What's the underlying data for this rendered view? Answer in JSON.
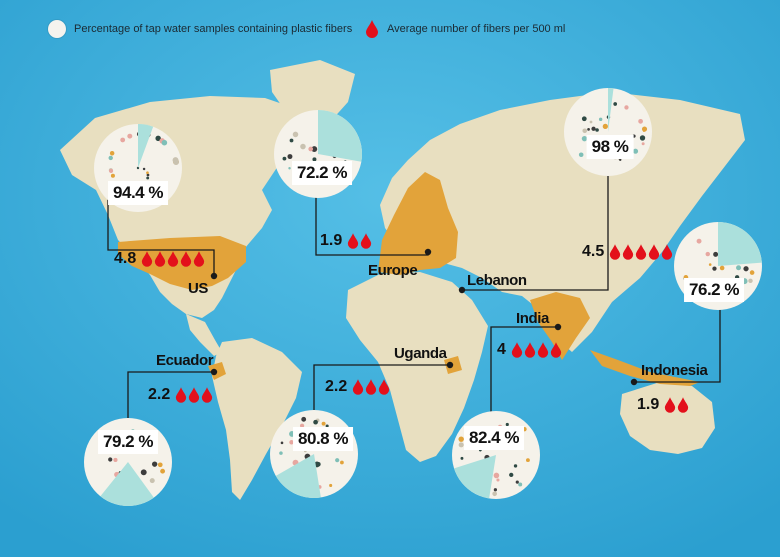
{
  "legend": {
    "pie_label": "Percentage of tap water samples containing plastic fibers",
    "drop_label": "Average number of fibers per 500 ml"
  },
  "colors": {
    "ocean": "#35a9d8",
    "land": "#e8dfc0",
    "highlight": "#e2a33a",
    "pie_fill": "#f5f2ea",
    "pie_slice": "#abe0dc",
    "drop": "#e3101b",
    "line": "#1a1a1a"
  },
  "chart_data": {
    "type": "pie",
    "series": [
      {
        "name": "Percentage of tap water samples containing plastic fibers",
        "unit": "%"
      },
      {
        "name": "Average number of fibers per 500 ml"
      }
    ],
    "countries": [
      {
        "name": "US",
        "percent": 94.4,
        "percent_label": "94.4 %",
        "fibers": 4.8,
        "fibers_label": "4.8"
      },
      {
        "name": "Europe",
        "percent": 72.2,
        "percent_label": "72.2 %",
        "fibers": 1.9,
        "fibers_label": "1.9"
      },
      {
        "name": "Lebanon",
        "percent": 98,
        "percent_label": "98 %",
        "fibers": 4.5,
        "fibers_label": "4.5"
      },
      {
        "name": "Indonesia",
        "percent": 76.2,
        "percent_label": "76.2 %",
        "fibers": 1.9,
        "fibers_label": "1.9"
      },
      {
        "name": "India",
        "percent": 82.4,
        "percent_label": "82.4 %",
        "fibers": 4,
        "fibers_label": "4"
      },
      {
        "name": "Uganda",
        "percent": 80.8,
        "percent_label": "80.8 %",
        "fibers": 2.2,
        "fibers_label": "2.2"
      },
      {
        "name": "Ecuador",
        "percent": 79.2,
        "percent_label": "79.2 %",
        "fibers": 2.2,
        "fibers_label": "2.2"
      }
    ]
  }
}
